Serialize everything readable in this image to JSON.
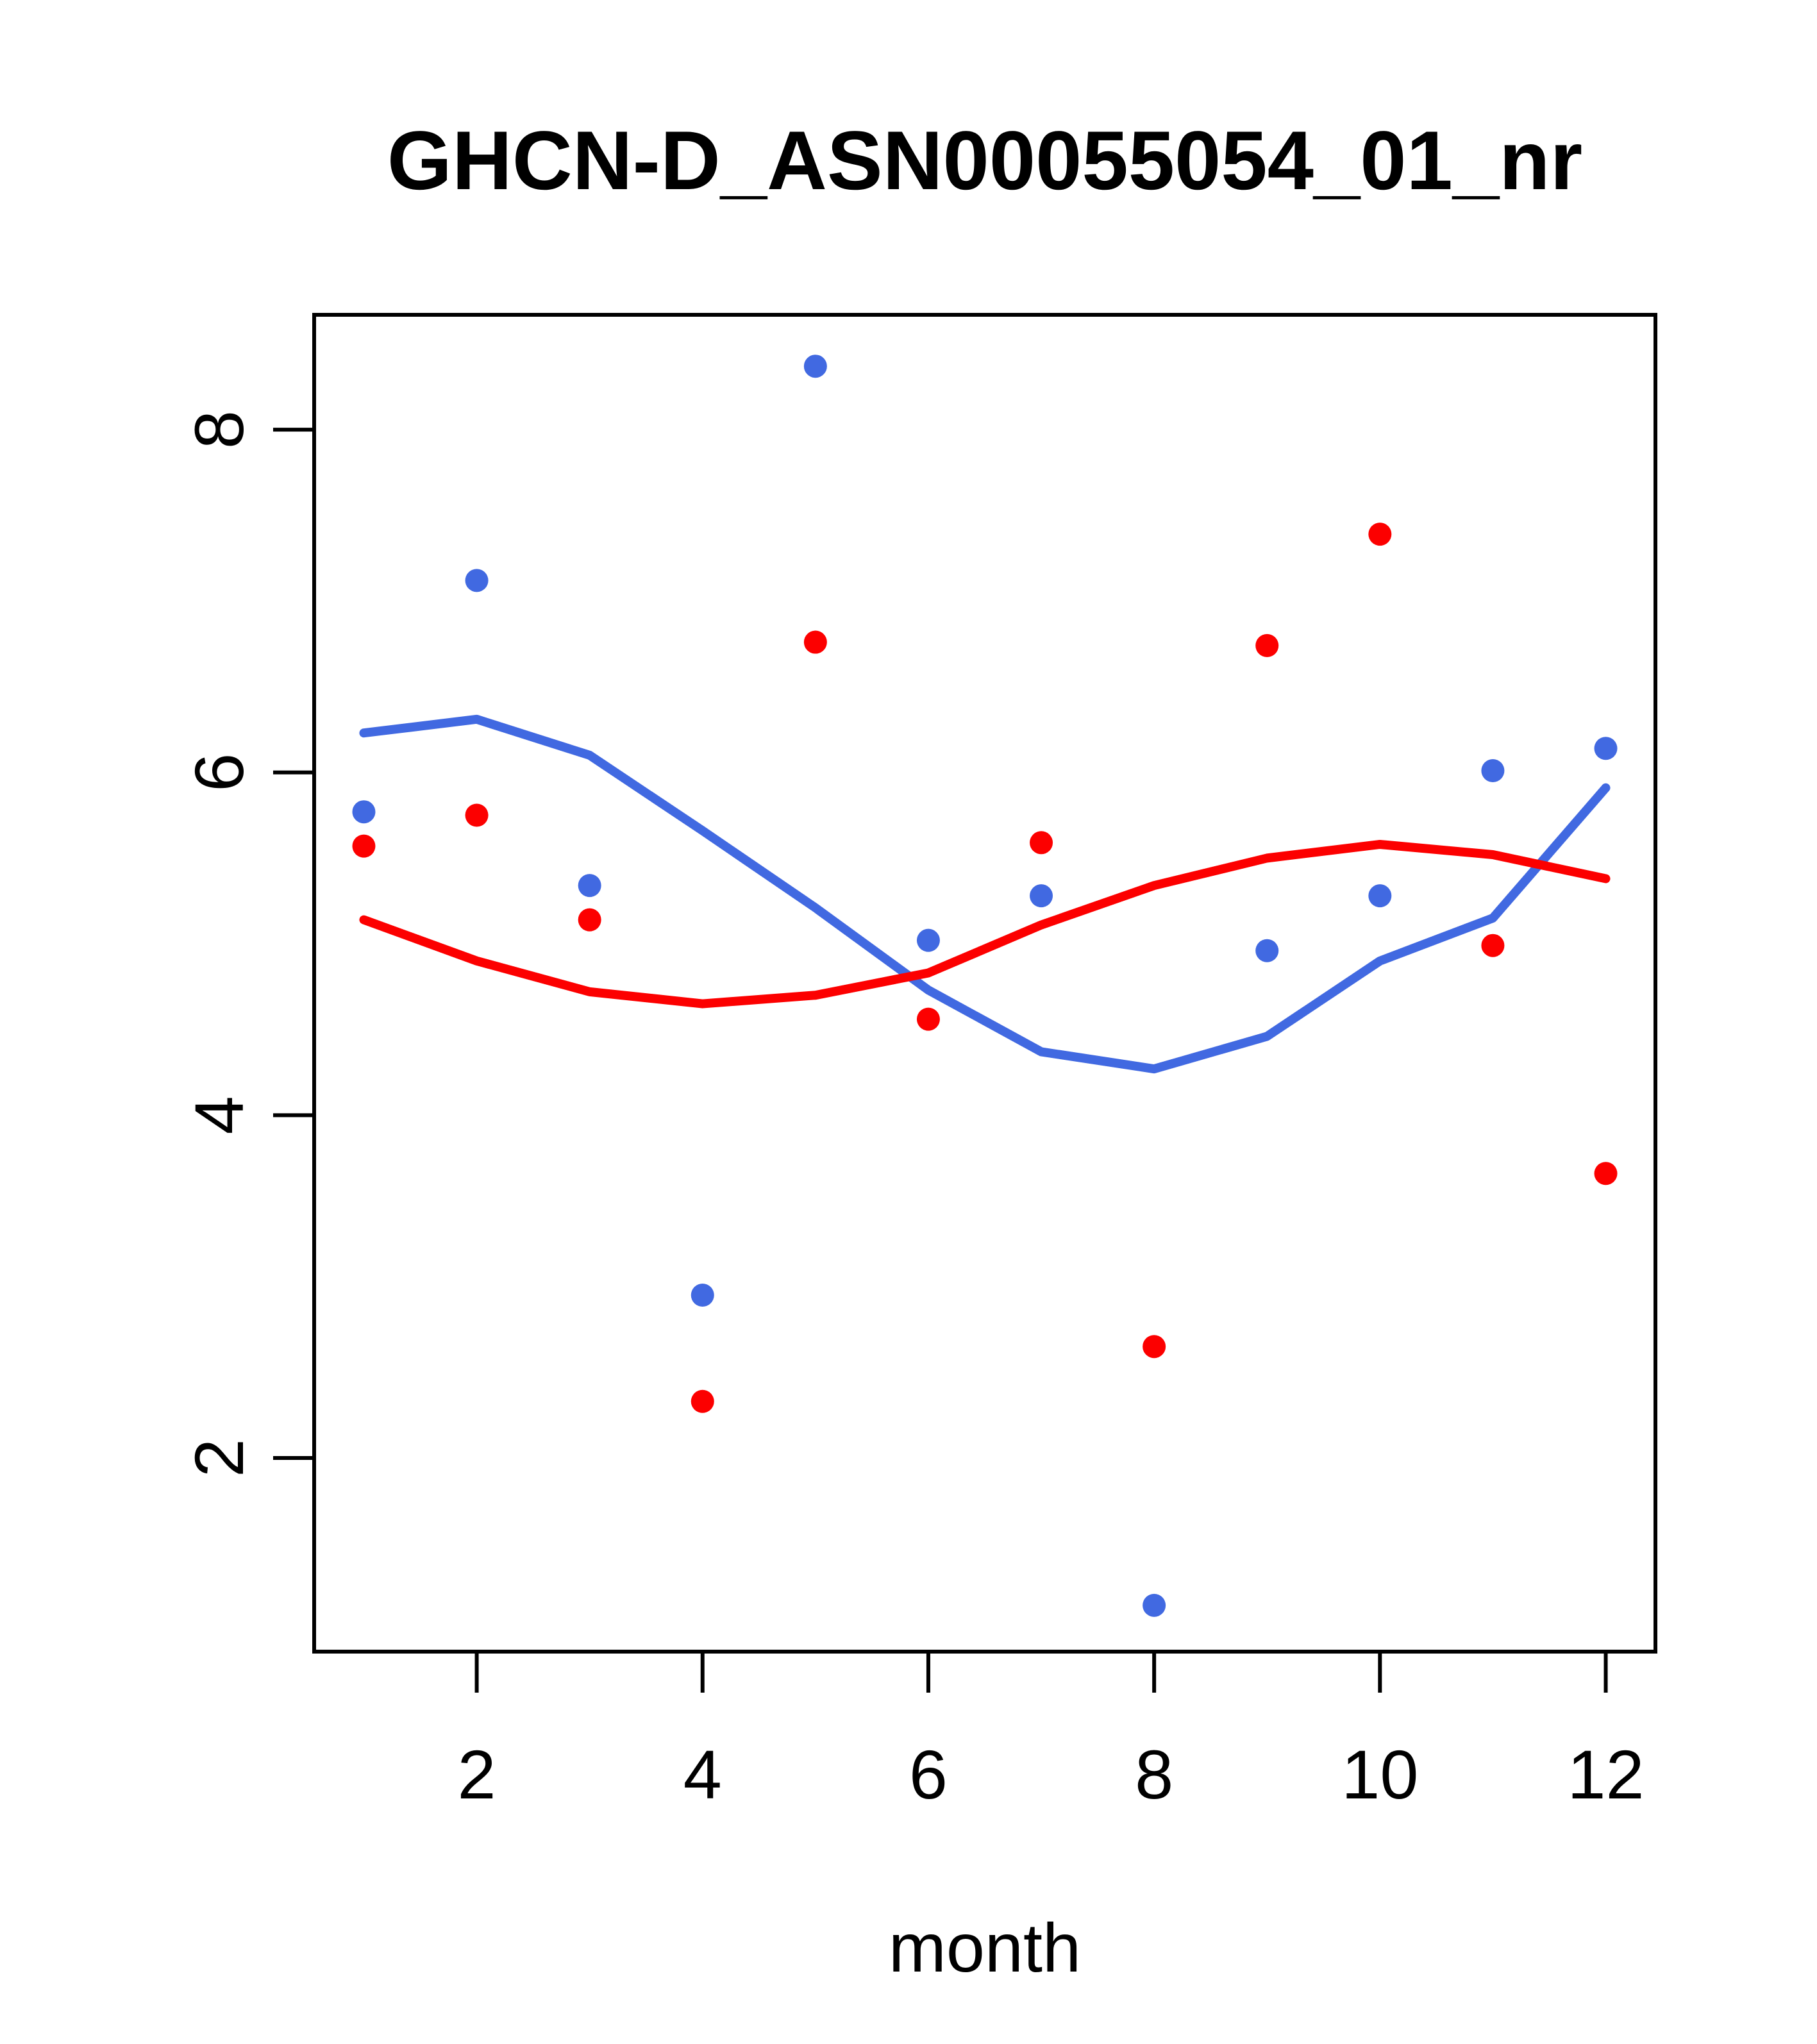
{
  "chart_data": {
    "type": "scatter",
    "title": "GHCN-D_ASN00055054_01_nr",
    "xlabel": "month",
    "ylabel": "",
    "x_ticks": [
      2,
      4,
      6,
      8,
      10,
      12
    ],
    "y_ticks": [
      2,
      4,
      6,
      8
    ],
    "xlim": [
      0.56,
      12.44
    ],
    "ylim": [
      0.87,
      8.67
    ],
    "grid": false,
    "legend": "none",
    "colors": {
      "blue": "#4169E1",
      "red": "#FC0000",
      "axis": "#000000"
    },
    "x": [
      1,
      2,
      3,
      4,
      5,
      6,
      7,
      8,
      9,
      10,
      11,
      12
    ],
    "series": [
      {
        "name": "blue-points",
        "kind": "points",
        "color": "#4169E1",
        "values": [
          5.77,
          7.12,
          5.34,
          2.95,
          8.37,
          5.02,
          5.28,
          1.14,
          4.96,
          5.28,
          6.01,
          6.14
        ]
      },
      {
        "name": "red-points",
        "kind": "points",
        "color": "#FC0000",
        "values": [
          5.57,
          5.75,
          5.14,
          2.33,
          6.76,
          4.56,
          5.59,
          2.65,
          6.74,
          7.39,
          4.99,
          3.66
        ]
      },
      {
        "name": "blue-smooth-line",
        "kind": "line",
        "color": "#4169E1",
        "values": [
          6.23,
          6.31,
          6.1,
          5.66,
          5.21,
          4.73,
          4.37,
          4.27,
          4.46,
          4.9,
          5.15,
          5.91
        ]
      },
      {
        "name": "red-smooth-line",
        "kind": "line",
        "color": "#FC0000",
        "values": [
          5.14,
          4.9,
          4.72,
          4.65,
          4.7,
          4.83,
          5.11,
          5.34,
          5.5,
          5.58,
          5.52,
          5.38
        ]
      }
    ]
  }
}
